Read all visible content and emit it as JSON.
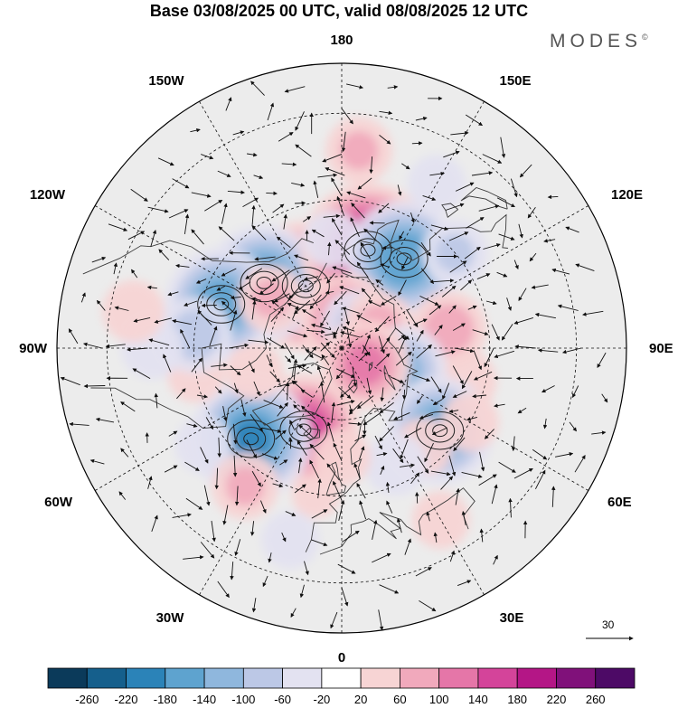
{
  "title": "Base 03/08/2025 00 UTC, valid 08/08/2025 12 UTC",
  "brand": "MODES",
  "brand_mark": "©",
  "map": {
    "projection": "north-polar-stereographic",
    "longitude_labels": {
      "top": "180",
      "upper_left": "150W",
      "upper_right": "150E",
      "left_upper": "120W",
      "right_upper": "120E",
      "left": "90W",
      "right": "90E",
      "left_lower": "60W",
      "right_lower": "60E",
      "lower_left": "30W",
      "lower_right": "30E",
      "bottom": "0"
    },
    "reference_vector": {
      "value": "30"
    }
  },
  "colorbar": {
    "ticks": [
      "-260",
      "-220",
      "-180",
      "-140",
      "-100",
      "-60",
      "-20",
      "20",
      "60",
      "100",
      "140",
      "180",
      "220",
      "260"
    ],
    "colors": [
      "#0b3a5a",
      "#155f8c",
      "#2b83b8",
      "#5ea3cf",
      "#8fb7dd",
      "#bcc8e6",
      "#e3e2f1",
      "#ffffff",
      "#f7d4d4",
      "#f1a9bc",
      "#e576a8",
      "#d4449a",
      "#b41686",
      "#80117a",
      "#4d0a66"
    ]
  },
  "anomalies": [
    {
      "lon": -150,
      "lat": 70,
      "value": 200
    },
    {
      "lon": -130,
      "lat": 62,
      "value": -170
    },
    {
      "lon": -110,
      "lat": 55,
      "value": -160
    },
    {
      "lon": -125,
      "lat": 66,
      "value": 60
    },
    {
      "lon": 165,
      "lat": 62,
      "value": 210
    },
    {
      "lon": -175,
      "lat": 60,
      "value": -40
    },
    {
      "lon": 145,
      "lat": 60,
      "value": -170
    },
    {
      "lon": 130,
      "lat": 50,
      "value": -60
    },
    {
      "lon": 170,
      "lat": 82,
      "value": 120
    },
    {
      "lon": 150,
      "lat": 82,
      "value": -60
    },
    {
      "lon": 120,
      "lat": 78,
      "value": 70
    },
    {
      "lon": 100,
      "lat": 60,
      "value": 80
    },
    {
      "lon": 75,
      "lat": 55,
      "value": 50
    },
    {
      "lon": 70,
      "lat": 72,
      "value": -110
    },
    {
      "lon": 55,
      "lat": 82,
      "value": 110
    },
    {
      "lon": 50,
      "lat": 55,
      "value": -150
    },
    {
      "lon": 40,
      "lat": 55,
      "value": 40
    },
    {
      "lon": 25,
      "lat": 55,
      "value": -50
    },
    {
      "lon": -10,
      "lat": 50,
      "value": 20
    },
    {
      "lon": -25,
      "lat": 65,
      "value": 160
    },
    {
      "lon": -45,
      "lat": 55,
      "value": -180
    },
    {
      "lon": -55,
      "lat": 45,
      "value": -40
    },
    {
      "lon": -35,
      "lat": 45,
      "value": 60
    },
    {
      "lon": -80,
      "lat": 50,
      "value": 40
    },
    {
      "lon": -95,
      "lat": 50,
      "value": -80
    },
    {
      "lon": -75,
      "lat": 65,
      "value": 40
    },
    {
      "lon": 0,
      "lat": 60,
      "value": 40
    },
    {
      "lon": 60,
      "lat": 50,
      "value": 40
    },
    {
      "lon": -90,
      "lat": 40,
      "value": -50
    },
    {
      "lon": -100,
      "lat": 35,
      "value": 50
    },
    {
      "lon": 175,
      "lat": 38,
      "value": 60
    },
    {
      "lon": 150,
      "lat": 40,
      "value": -40
    },
    {
      "lon": 30,
      "lat": 38,
      "value": 40
    },
    {
      "lon": -15,
      "lat": 38,
      "value": -40
    }
  ]
}
